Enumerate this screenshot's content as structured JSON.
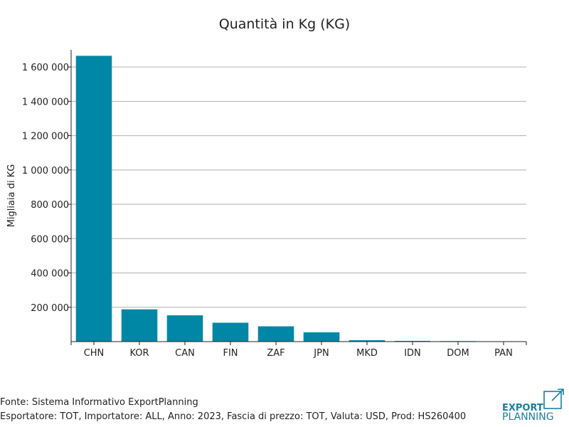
{
  "chart_data": {
    "type": "bar",
    "title": "Quantità in Kg (KG)",
    "xlabel": "",
    "ylabel": "Migliaia di KG",
    "categories": [
      "CHN",
      "KOR",
      "CAN",
      "FIN",
      "ZAF",
      "JPN",
      "MKD",
      "IDN",
      "DOM",
      "PAN"
    ],
    "values": [
      1665000,
      188000,
      153000,
      110000,
      89000,
      54000,
      8000,
      4000,
      3000,
      1500
    ],
    "ylim": [
      0,
      1700000
    ],
    "yticks": [
      200000,
      400000,
      600000,
      800000,
      1000000,
      1200000,
      1400000,
      1600000
    ],
    "ytick_labels": [
      "200 000",
      "400 000",
      "600 000",
      "800 000",
      "1 000 000",
      "1 200 000",
      "1 400 000",
      "1 600 000"
    ],
    "grid": true,
    "bar_color": "#0087a5"
  },
  "footer": {
    "source": "Fonte: Sistema Informativo ExportPlanning",
    "filters": "Esportatore: TOT, Importatore: ALL, Anno: 2023, Fascia di prezzo: TOT, Valuta: USD, Prod: HS260400"
  },
  "logo": {
    "line1": "EXPORT",
    "line2": "PLANNING",
    "color": "#1a7fa0"
  }
}
